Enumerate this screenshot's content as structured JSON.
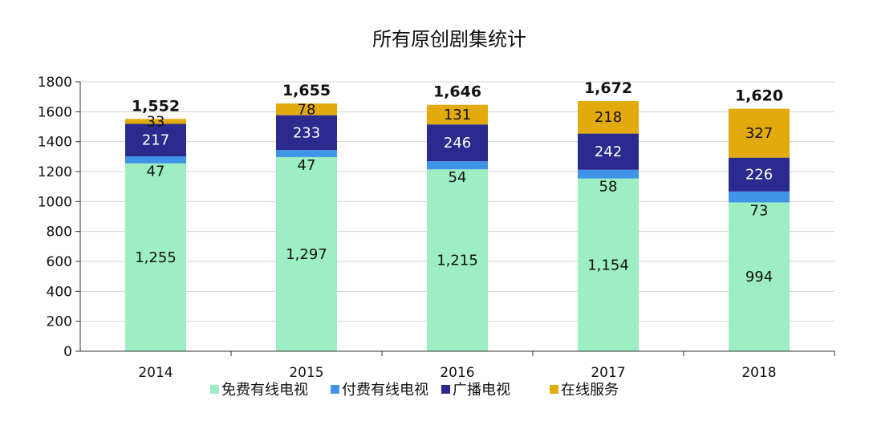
{
  "chart_data": {
    "type": "stacked-bar",
    "title": "所有原创剧集统计",
    "categories": [
      "2014",
      "2015",
      "2016",
      "2017",
      "2018"
    ],
    "series": [
      {
        "name": "免费有线电视",
        "color": "#9deec2",
        "label_color": "#111111",
        "values": [
          1255,
          1297,
          1215,
          1154,
          994
        ],
        "labels": [
          "1,255",
          "1,297",
          "1,215",
          "1,154",
          "994"
        ]
      },
      {
        "name": "付费有线电视",
        "color": "#3f93e8",
        "label_color": "#111111",
        "values": [
          47,
          47,
          54,
          58,
          73
        ],
        "labels": [
          "47",
          "47",
          "54",
          "58",
          "73"
        ]
      },
      {
        "name": "广播电视",
        "color": "#2b2a8e",
        "label_color": "#ffffff",
        "values": [
          217,
          233,
          246,
          242,
          226
        ],
        "labels": [
          "217",
          "233",
          "246",
          "242",
          "226"
        ]
      },
      {
        "name": "在线服务",
        "color": "#e2aa0a",
        "label_color": "#111111",
        "values": [
          33,
          78,
          131,
          218,
          327
        ],
        "labels": [
          "33",
          "78",
          "131",
          "218",
          "327"
        ]
      }
    ],
    "totals": [
      "1,552",
      "1,655",
      "1,646",
      "1,672",
      "1,620"
    ],
    "ylim": [
      0,
      1800
    ],
    "yticks": [
      0,
      200,
      400,
      600,
      800,
      1000,
      1200,
      1400,
      1600,
      1800
    ],
    "grid": true,
    "legend_position": "bottom"
  }
}
